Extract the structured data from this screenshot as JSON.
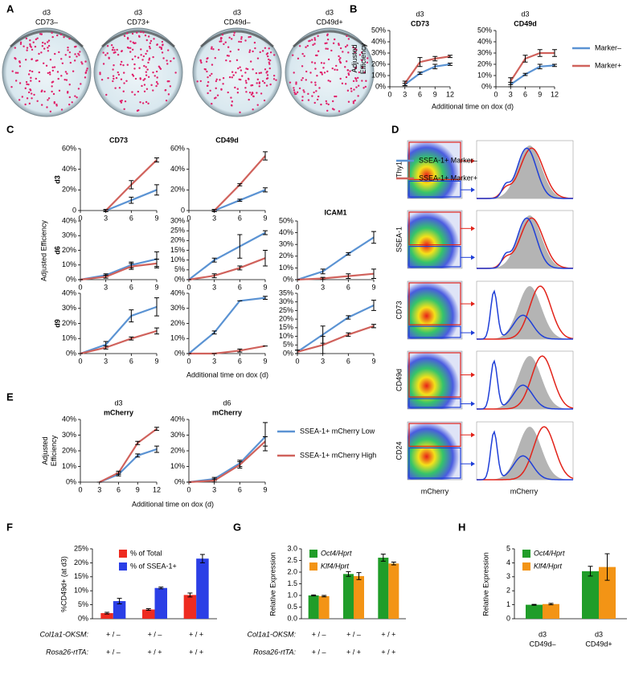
{
  "panel_labels": [
    "A",
    "B",
    "C",
    "D",
    "E",
    "F",
    "G",
    "H"
  ],
  "panel_A": {
    "samples": [
      [
        "d3",
        "CD73–"
      ],
      [
        "d3",
        "CD73+"
      ],
      [
        "d3",
        "CD49d–"
      ],
      [
        "d3",
        "CD49d+"
      ]
    ]
  },
  "panel_D": {
    "markers": [
      "Thy1",
      "SSEA-1",
      "CD73",
      "CD49d",
      "CD24"
    ],
    "x_labels": [
      "mCherry",
      "mCherry"
    ]
  },
  "chart_data": [
    {
      "type": "line",
      "subtitle": "d3",
      "title": "CD73",
      "ylabel": [
        "Adjusted",
        "Efficiency"
      ],
      "x": [
        3,
        6,
        9,
        12
      ],
      "xlim": [
        0,
        12
      ],
      "xticks": [
        0,
        3,
        6,
        9,
        12
      ],
      "ylim": [
        0,
        50
      ],
      "yticks": [
        {
          "value": 0,
          "label": "0%"
        },
        {
          "value": 10,
          "label": "10%"
        },
        {
          "value": 20,
          "label": "20%"
        },
        {
          "value": 30,
          "label": "30%"
        },
        {
          "value": 40,
          "label": "40%"
        },
        {
          "value": 50,
          "label": "50%"
        }
      ],
      "series": [
        {
          "color": "#5b93d3",
          "values": [
            2,
            12,
            18,
            20
          ],
          "errors": [
            1,
            1,
            2,
            1
          ]
        },
        {
          "color": "#d0625c",
          "values": [
            3,
            22,
            25,
            27
          ],
          "errors": [
            2,
            4,
            2,
            1
          ]
        }
      ]
    },
    {
      "type": "line",
      "subtitle": "d3",
      "title": "CD49d",
      "xlabel": "Additional time on dox (d)",
      "legend": "right",
      "x": [
        3,
        6,
        9,
        12
      ],
      "xlim": [
        0,
        12
      ],
      "xticks": [
        0,
        3,
        6,
        9,
        12
      ],
      "ylim": [
        0,
        50
      ],
      "yticks": [
        {
          "value": 0,
          "label": "0%"
        },
        {
          "value": 10,
          "label": "10%"
        },
        {
          "value": 20,
          "label": "20%"
        },
        {
          "value": 30,
          "label": "30%"
        },
        {
          "value": 40,
          "label": "40%"
        },
        {
          "value": 50,
          "label": "50%"
        }
      ],
      "series": [
        {
          "name": "Marker–",
          "color": "#5b93d3",
          "values": [
            2,
            11,
            18,
            19
          ],
          "errors": [
            2,
            1,
            2,
            1
          ]
        },
        {
          "name": "Marker+",
          "color": "#d0625c",
          "values": [
            5,
            25,
            30,
            30
          ],
          "errors": [
            3,
            3,
            3,
            3
          ]
        }
      ]
    },
    {
      "type": "line",
      "title": "CD73",
      "row_label": "d3",
      "x": [
        3,
        6,
        9
      ],
      "xlim": [
        0,
        9
      ],
      "xticks": [
        0,
        3,
        6,
        9
      ],
      "ylim": [
        0,
        60
      ],
      "yticks": [
        0,
        {
          "value": 20,
          "label": "20%"
        },
        {
          "value": 40,
          "label": "40%"
        },
        {
          "value": 60,
          "label": "60%"
        }
      ],
      "series": [
        {
          "color": "#5b93d3",
          "values": [
            0,
            10,
            20
          ],
          "errors": [
            1,
            3,
            5
          ]
        },
        {
          "color": "#d0625c",
          "values": [
            0,
            25,
            49
          ],
          "errors": [
            1,
            4,
            2
          ]
        }
      ]
    },
    {
      "type": "line",
      "title": "CD49d",
      "legend": "right",
      "x": [
        3,
        6,
        9
      ],
      "xlim": [
        0,
        9
      ],
      "xticks": [
        0,
        3,
        6,
        9
      ],
      "ylim": [
        0,
        60
      ],
      "yticks": [
        0,
        {
          "value": 20,
          "label": "20%"
        },
        {
          "value": 40,
          "label": "40%"
        },
        {
          "value": 60,
          "label": "60%"
        }
      ],
      "series": [
        {
          "name": "SSEA-1+ Marker–",
          "color": "#5b93d3",
          "values": [
            0,
            10,
            20
          ],
          "errors": [
            1,
            1,
            2
          ]
        },
        {
          "name": "SSEA-1+ Marker+",
          "color": "#d0625c",
          "values": [
            0,
            25,
            53
          ],
          "errors": [
            1,
            1,
            4
          ]
        }
      ]
    },
    {
      "type": "line",
      "row_label": "d6",
      "ylabel": "Adjusted Efficiency",
      "x": [
        0,
        3,
        6,
        9
      ],
      "xlim": [
        0,
        9
      ],
      "xticks": [
        0,
        3,
        6,
        9
      ],
      "ylim": [
        0,
        40
      ],
      "yticks": [
        {
          "value": 0,
          "label": "0%"
        },
        {
          "value": 10,
          "label": "10%"
        },
        {
          "value": 20,
          "label": "20%"
        },
        {
          "value": 30,
          "label": "30%"
        },
        {
          "value": 40,
          "label": "40%"
        }
      ],
      "series": [
        {
          "color": "#5b93d3",
          "values": [
            0,
            3,
            10,
            14
          ],
          "errors": [
            0,
            1,
            2,
            5
          ]
        },
        {
          "color": "#d0625c",
          "values": [
            0,
            2,
            9,
            11
          ],
          "errors": [
            0,
            1,
            2,
            3
          ]
        }
      ]
    },
    {
      "type": "line",
      "x": [
        0,
        3,
        6,
        9
      ],
      "xlim": [
        0,
        9
      ],
      "xticks": [
        0,
        3,
        6,
        9
      ],
      "ylim": [
        0,
        30
      ],
      "yticks": [
        {
          "value": 0,
          "label": "0%"
        },
        {
          "value": 5,
          "label": "5%"
        },
        {
          "value": 10,
          "label": "10%"
        },
        {
          "value": 15,
          "label": "15%"
        },
        {
          "value": 20,
          "label": "20%"
        },
        {
          "value": 25,
          "label": "25%"
        },
        {
          "value": 30,
          "label": "30%"
        }
      ],
      "series": [
        {
          "color": "#5b93d3",
          "values": [
            0,
            10,
            17,
            24
          ],
          "errors": [
            0,
            1,
            6,
            1
          ]
        },
        {
          "color": "#d0625c",
          "values": [
            0,
            2,
            6,
            11
          ],
          "errors": [
            0,
            1,
            1,
            4
          ]
        }
      ]
    },
    {
      "type": "line",
      "title": "ICAM1",
      "x": [
        0,
        3,
        6,
        9
      ],
      "xlim": [
        0,
        9
      ],
      "xticks": [
        0,
        3,
        6,
        9
      ],
      "ylim": [
        0,
        50
      ],
      "yticks": [
        {
          "value": 0,
          "label": "0%"
        },
        {
          "value": 10,
          "label": "10%"
        },
        {
          "value": 20,
          "label": "20%"
        },
        {
          "value": 30,
          "label": "30%"
        },
        {
          "value": 40,
          "label": "40%"
        },
        {
          "value": 50,
          "label": "50%"
        }
      ],
      "series": [
        {
          "color": "#5b93d3",
          "values": [
            0,
            7,
            22,
            36
          ],
          "errors": [
            0,
            2,
            1,
            5
          ]
        },
        {
          "color": "#d0625c",
          "values": [
            0,
            1,
            3,
            5
          ],
          "errors": [
            0,
            1,
            2,
            4
          ]
        }
      ]
    },
    {
      "type": "line",
      "row_label": "d9",
      "x": [
        0,
        3,
        6,
        9
      ],
      "xlim": [
        0,
        9
      ],
      "xticks": [
        0,
        3,
        6,
        9
      ],
      "ylim": [
        0,
        40
      ],
      "yticks": [
        {
          "value": 0,
          "label": "0%"
        },
        {
          "value": 10,
          "label": "10%"
        },
        {
          "value": 20,
          "label": "20%"
        },
        {
          "value": 30,
          "label": "30%"
        },
        {
          "value": 40,
          "label": "40%"
        }
      ],
      "series": [
        {
          "color": "#5b93d3",
          "values": [
            0,
            6,
            25,
            31
          ],
          "errors": [
            0,
            2,
            4,
            6
          ]
        },
        {
          "color": "#d0625c",
          "values": [
            0,
            4,
            10,
            15
          ],
          "errors": [
            0,
            1,
            1,
            2
          ]
        }
      ]
    },
    {
      "type": "line",
      "xlabel": "Additional time on dox (d)",
      "x": [
        0,
        3,
        6,
        9
      ],
      "xlim": [
        0,
        9
      ],
      "xticks": [
        0,
        3,
        6,
        9
      ],
      "ylim": [
        0,
        40
      ],
      "yticks": [
        {
          "value": 0,
          "label": "0%"
        },
        {
          "value": 10,
          "label": "10%"
        },
        {
          "value": 20,
          "label": "20%"
        },
        {
          "value": 30,
          "label": "30%"
        },
        {
          "value": 40,
          "label": "40%"
        }
      ],
      "series": [
        {
          "color": "#5b93d3",
          "values": [
            0,
            14,
            35,
            37
          ],
          "errors": [
            0,
            1,
            0,
            1
          ]
        },
        {
          "color": "#d0625c",
          "values": [
            0,
            0,
            2,
            5
          ],
          "errors": [
            0,
            0,
            1,
            0
          ]
        }
      ]
    },
    {
      "type": "line",
      "x": [
        0,
        3,
        6,
        9
      ],
      "xlim": [
        0,
        9
      ],
      "xticks": [
        0,
        3,
        6,
        9
      ],
      "ylim": [
        0,
        35
      ],
      "yticks": [
        {
          "value": 0,
          "label": "0%"
        },
        {
          "value": 5,
          "label": "5%"
        },
        {
          "value": 10,
          "label": "10%"
        },
        {
          "value": 15,
          "label": "15%"
        },
        {
          "value": 20,
          "label": "20%"
        },
        {
          "value": 25,
          "label": "25%"
        },
        {
          "value": 30,
          "label": "30%"
        },
        {
          "value": 35,
          "label": "35%"
        }
      ],
      "series": [
        {
          "color": "#5b93d3",
          "values": [
            1,
            11,
            21,
            28
          ],
          "errors": [
            1,
            5,
            1,
            3
          ]
        },
        {
          "color": "#d0625c",
          "values": [
            1,
            5,
            11,
            16
          ],
          "errors": [
            1,
            5,
            1,
            1
          ]
        }
      ]
    },
    {
      "type": "line",
      "subtitle": "d3",
      "title": "mCherry",
      "ylabel": [
        "Adjusted",
        "Efficiency"
      ],
      "x": [
        3,
        6,
        9,
        12
      ],
      "xlim": [
        0,
        12
      ],
      "xticks": [
        0,
        3,
        6,
        9,
        12
      ],
      "ylim": [
        0,
        40
      ],
      "yticks": [
        {
          "value": 0,
          "label": "0%"
        },
        {
          "value": 10,
          "label": "10%"
        },
        {
          "value": 20,
          "label": "20%"
        },
        {
          "value": 30,
          "label": "30%"
        },
        {
          "value": 40,
          "label": "40%"
        }
      ],
      "series": [
        {
          "color": "#5b93d3",
          "values": [
            0,
            5,
            17,
            21
          ],
          "errors": [
            0,
            1,
            1,
            2
          ]
        },
        {
          "color": "#d0625c",
          "values": [
            0,
            6,
            25,
            34
          ],
          "errors": [
            0,
            1,
            1,
            1
          ]
        }
      ]
    },
    {
      "type": "line",
      "subtitle": "d6",
      "title": "mCherry",
      "xlabel": "Additional time on dox (d)",
      "legend": "right",
      "x": [
        0,
        3,
        6,
        9
      ],
      "xlim": [
        0,
        9
      ],
      "xticks": [
        0,
        3,
        6,
        9
      ],
      "ylim": [
        0,
        40
      ],
      "yticks": [
        {
          "value": 0,
          "label": "0%"
        },
        {
          "value": 10,
          "label": "10%"
        },
        {
          "value": 20,
          "label": "20%"
        },
        {
          "value": 30,
          "label": "30%"
        },
        {
          "value": 40,
          "label": "40%"
        }
      ],
      "series": [
        {
          "name": "SSEA-1+ mCherry Low",
          "color": "#5b93d3",
          "values": [
            0,
            2,
            12,
            29
          ],
          "errors": [
            0,
            1,
            2,
            9
          ]
        },
        {
          "name": "SSEA-1+ mCherry High",
          "color": "#d0625c",
          "values": [
            0,
            1,
            11,
            26
          ],
          "errors": [
            0,
            1,
            2,
            3
          ]
        }
      ]
    },
    {
      "type": "bar",
      "ylabel": "%CD49d+ (at d3)",
      "legend": "upper left",
      "category_rows": [
        {
          "label": "Col1a1-OKSM:",
          "values": [
            "+ / –",
            "+ / –",
            "+ / +"
          ]
        },
        {
          "label": "Rosa26-rtTA:",
          "values": [
            "+ / –",
            "+ / +",
            "+ / +"
          ]
        }
      ],
      "ylim": [
        0,
        25
      ],
      "yticks": [
        {
          "value": 0,
          "label": "0%"
        },
        {
          "value": 5,
          "label": "5%"
        },
        {
          "value": 10,
          "label": "10%"
        },
        {
          "value": 15,
          "label": "15%"
        },
        {
          "value": 20,
          "label": "20%"
        },
        {
          "value": 25,
          "label": "25%"
        }
      ],
      "series": [
        {
          "name": "% of Total",
          "color": "#ee2b20",
          "values": [
            2,
            3.3,
            8.5
          ],
          "errors": [
            0.3,
            0.3,
            0.7
          ]
        },
        {
          "name": "% of SSEA-1+",
          "color": "#2b3fe6",
          "values": [
            6.3,
            11,
            21.5
          ],
          "errors": [
            1,
            0.3,
            1.5
          ]
        }
      ]
    },
    {
      "type": "bar",
      "ylabel": "Relative Expression",
      "legend": "upper left",
      "italic_names": true,
      "category_rows": [
        {
          "label": "Col1a1-OKSM:",
          "values": [
            "+ / –",
            "+ / –",
            "+ / +"
          ]
        },
        {
          "label": "Rosa26-rtTA:",
          "values": [
            "+ / –",
            "+ / +",
            "+ / +"
          ]
        }
      ],
      "ylim": [
        0,
        3
      ],
      "yticks": [
        {
          "value": 0,
          "label": "0.0"
        },
        0.5,
        {
          "value": 1,
          "label": "1.0"
        },
        1.5,
        {
          "value": 2,
          "label": "2.0"
        },
        2.5,
        {
          "value": 3,
          "label": "3.0"
        }
      ],
      "series": [
        {
          "name": "Oct4/Hprt",
          "color": "#209d29",
          "values": [
            1,
            1.92,
            2.62
          ],
          "errors": [
            0.02,
            0.1,
            0.15
          ]
        },
        {
          "name": "Klf4/Hprt",
          "color": "#f39415",
          "values": [
            0.97,
            1.83,
            2.37
          ],
          "errors": [
            0.03,
            0.15,
            0.06
          ]
        }
      ]
    },
    {
      "type": "bar",
      "ylabel": "Relative Expression",
      "legend": "upper left",
      "italic_names": true,
      "categories": [
        [
          "d3",
          "CD49d–"
        ],
        [
          "d3",
          "CD49d+"
        ]
      ],
      "ylim": [
        0,
        5
      ],
      "yticks": [
        0,
        1,
        2,
        3,
        4,
        5
      ],
      "series": [
        {
          "name": "Oct4/Hprt",
          "color": "#209d29",
          "values": [
            1,
            3.4
          ],
          "errors": [
            0.03,
            0.35
          ]
        },
        {
          "name": "Klf4/Hprt",
          "color": "#f39415",
          "values": [
            1.05,
            3.7
          ],
          "errors": [
            0.05,
            0.95
          ]
        }
      ]
    }
  ]
}
